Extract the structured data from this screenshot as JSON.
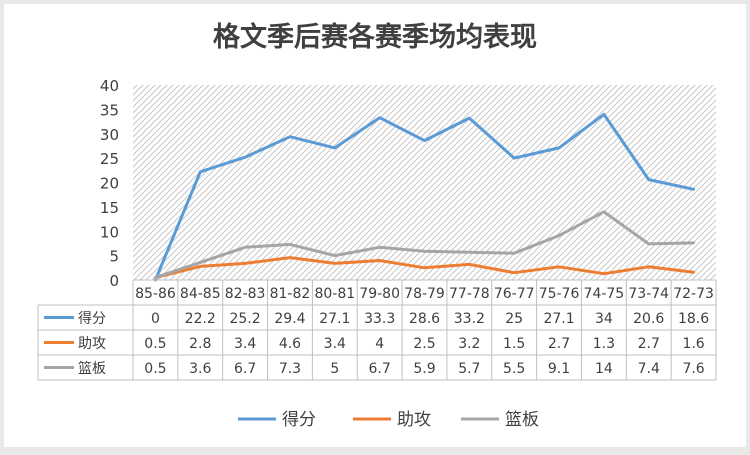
{
  "chart_data": {
    "type": "line",
    "title": "格文季后赛各赛季场均表现",
    "categories": [
      "85-86",
      "84-85",
      "82-83",
      "81-82",
      "80-81",
      "79-80",
      "78-79",
      "77-78",
      "76-77",
      "75-76",
      "74-75",
      "73-74",
      "72-73"
    ],
    "ylim": [
      0,
      40
    ],
    "yticks": [
      0,
      5,
      10,
      15,
      20,
      25,
      30,
      35,
      40
    ],
    "grid": false,
    "plot_background": "diagonal-hatch",
    "legend_position": "bottom",
    "data_table": true,
    "series": [
      {
        "name": "得分",
        "color": "#5b9bd5",
        "values": [
          0,
          22.2,
          25.2,
          29.4,
          27.1,
          33.3,
          28.6,
          33.2,
          25,
          27.1,
          34,
          20.6,
          18.6
        ]
      },
      {
        "name": "助攻",
        "color": "#ed7d31",
        "values": [
          0.5,
          2.8,
          3.4,
          4.6,
          3.4,
          4,
          2.5,
          3.2,
          1.5,
          2.7,
          1.3,
          2.7,
          1.6
        ]
      },
      {
        "name": "篮板",
        "color": "#a5a5a5",
        "values": [
          0.5,
          3.6,
          6.7,
          7.3,
          5,
          6.7,
          5.9,
          5.7,
          5.5,
          9.1,
          14,
          7.4,
          7.6
        ]
      }
    ]
  }
}
